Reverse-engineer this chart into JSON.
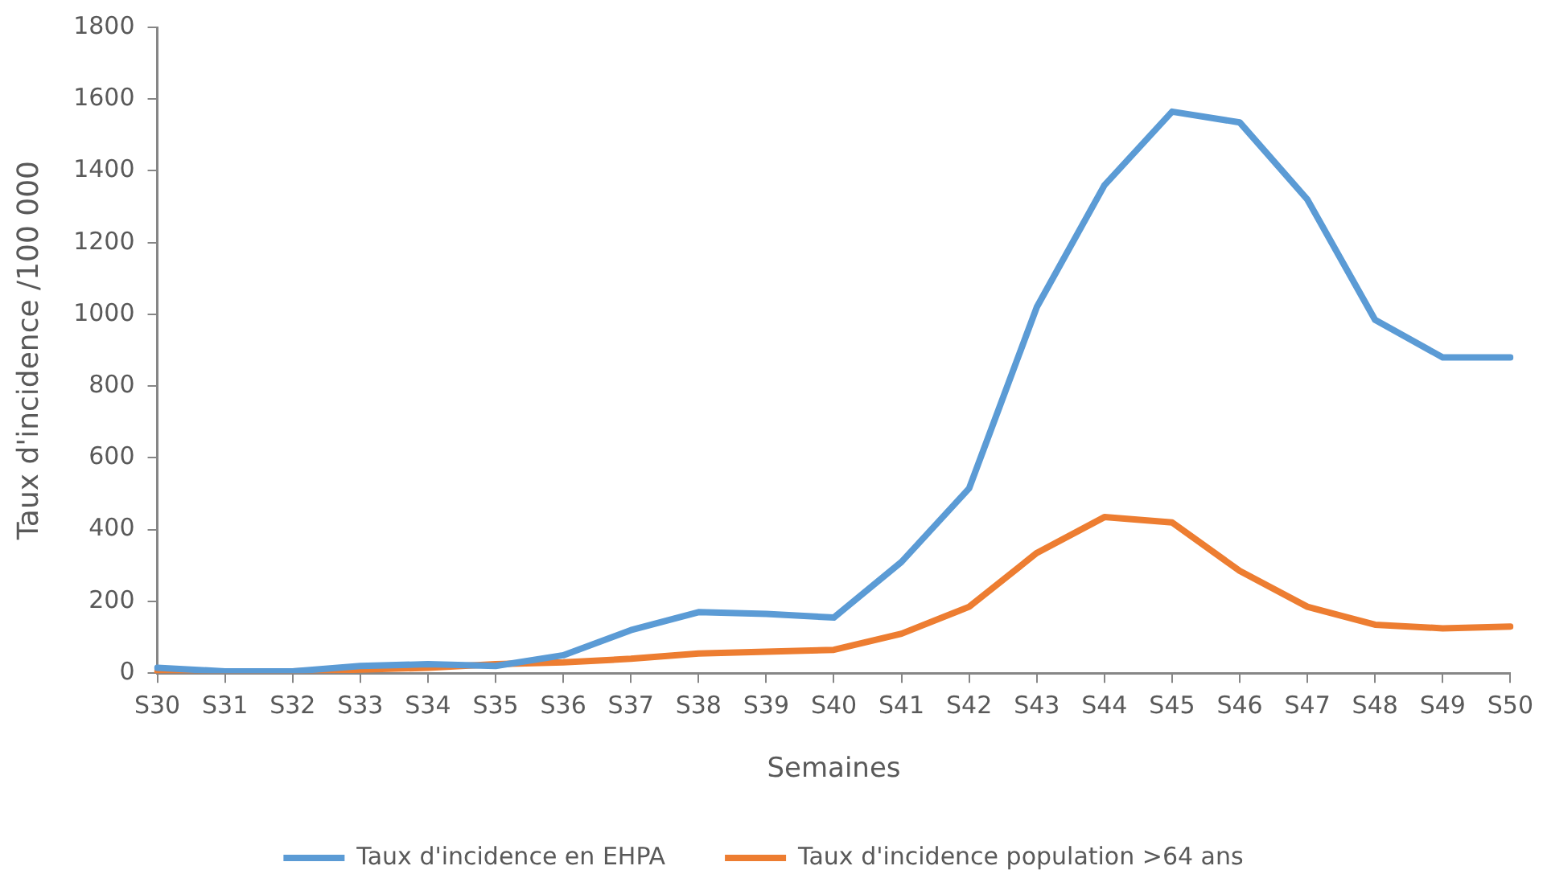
{
  "chart_data": {
    "type": "line",
    "xlabel": "Semaines",
    "ylabel": "Taux d'incidence /100 000",
    "categories": [
      "S30",
      "S31",
      "S32",
      "S33",
      "S34",
      "S35",
      "S36",
      "S37",
      "S38",
      "S39",
      "S40",
      "S41",
      "S42",
      "S43",
      "S44",
      "S45",
      "S46",
      "S47",
      "S48",
      "S49",
      "S50"
    ],
    "series": [
      {
        "name": "Taux d'incidence en EHPA",
        "color": "#5b9bd5",
        "values": [
          15,
          5,
          5,
          20,
          25,
          20,
          50,
          120,
          170,
          165,
          155,
          310,
          515,
          1020,
          1360,
          1565,
          1535,
          1320,
          985,
          880,
          880
        ]
      },
      {
        "name": "Taux d'incidence population >64 ans",
        "color": "#ed7d31",
        "values": [
          5,
          5,
          5,
          10,
          15,
          25,
          30,
          40,
          55,
          60,
          65,
          110,
          185,
          335,
          435,
          420,
          285,
          185,
          135,
          125,
          130
        ]
      }
    ],
    "ylim": [
      0,
      1800
    ],
    "yticks": [
      0,
      200,
      400,
      600,
      800,
      1000,
      1200,
      1400,
      1600,
      1800
    ],
    "legend": "bottom",
    "marker": "none",
    "line_style": "solid"
  }
}
